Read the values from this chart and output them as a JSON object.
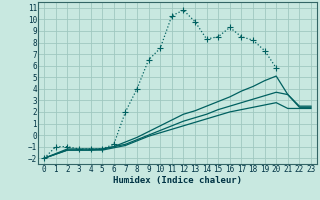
{
  "xlabel": "Humidex (Indice chaleur)",
  "xlim": [
    -0.5,
    23.5
  ],
  "ylim": [
    -2.5,
    11.5
  ],
  "yticks": [
    -2,
    -1,
    0,
    1,
    2,
    3,
    4,
    5,
    6,
    7,
    8,
    9,
    10,
    11
  ],
  "xticks": [
    0,
    1,
    2,
    3,
    4,
    5,
    6,
    7,
    8,
    9,
    10,
    11,
    12,
    13,
    14,
    15,
    16,
    17,
    18,
    19,
    20,
    21,
    22,
    23
  ],
  "background_color": "#c8e8e0",
  "grid_color": "#a0c8c0",
  "line_color": "#006060",
  "line1_x": [
    0,
    1,
    2,
    3,
    4,
    5,
    6,
    7,
    8,
    9,
    10,
    11,
    12,
    13,
    14,
    15,
    16,
    17,
    18,
    19,
    20
  ],
  "line1_y": [
    -2,
    -1,
    -1,
    -1.2,
    -1.2,
    -1.2,
    -0.8,
    2.0,
    4.0,
    6.5,
    7.5,
    10.3,
    10.8,
    9.8,
    8.3,
    8.5,
    9.3,
    8.5,
    8.2,
    7.3,
    5.8
  ],
  "line2_x": [
    0,
    2,
    3,
    4,
    5,
    6,
    7,
    8,
    9,
    10,
    11,
    12,
    13,
    14,
    15,
    16,
    17,
    18,
    19,
    20,
    21,
    22,
    23
  ],
  "line2_y": [
    -2,
    -1.2,
    -1.2,
    -1.2,
    -1.2,
    -1.0,
    -0.6,
    -0.2,
    0.3,
    0.8,
    1.3,
    1.8,
    2.1,
    2.5,
    2.9,
    3.3,
    3.8,
    4.2,
    4.7,
    5.1,
    3.5,
    2.5,
    2.5
  ],
  "line3_x": [
    0,
    2,
    3,
    4,
    5,
    6,
    7,
    8,
    9,
    10,
    11,
    12,
    13,
    14,
    15,
    16,
    17,
    18,
    19,
    20,
    21,
    22,
    23
  ],
  "line3_y": [
    -2,
    -1.3,
    -1.3,
    -1.3,
    -1.2,
    -1.0,
    -0.8,
    -0.4,
    0.0,
    0.4,
    0.8,
    1.2,
    1.5,
    1.8,
    2.2,
    2.5,
    2.8,
    3.1,
    3.4,
    3.7,
    3.5,
    2.4,
    2.4
  ],
  "line4_x": [
    0,
    2,
    3,
    4,
    5,
    6,
    7,
    8,
    9,
    10,
    11,
    12,
    13,
    14,
    15,
    16,
    17,
    18,
    19,
    20,
    21,
    22,
    23
  ],
  "line4_y": [
    -2,
    -1.3,
    -1.3,
    -1.3,
    -1.3,
    -1.1,
    -0.9,
    -0.5,
    -0.1,
    0.2,
    0.5,
    0.8,
    1.1,
    1.4,
    1.7,
    2.0,
    2.2,
    2.4,
    2.6,
    2.8,
    2.3,
    2.3,
    2.3
  ]
}
